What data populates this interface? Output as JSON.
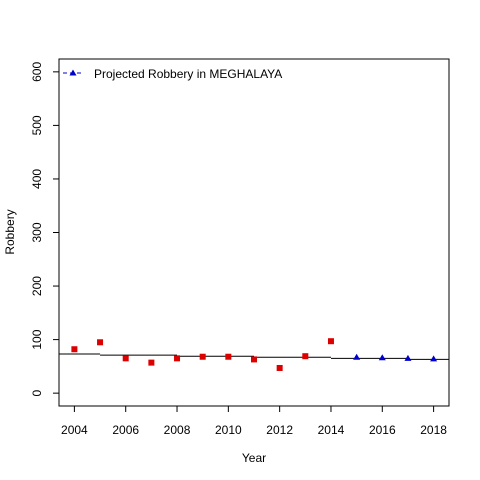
{
  "chart_data": {
    "type": "scatter",
    "xlabel": "Year",
    "ylabel": "Robbery",
    "xlim": [
      2003.4,
      2018.6
    ],
    "ylim": [
      -24,
      624
    ],
    "xticks": [
      "2004",
      "2006",
      "2008",
      "2010",
      "2012",
      "2014",
      "2016",
      "2018"
    ],
    "yticks": [
      "0",
      "100",
      "200",
      "300",
      "400",
      "500",
      "600"
    ],
    "legend_position": "top-left",
    "series": [
      {
        "marker": "square",
        "color": "#dd0000",
        "points": [
          {
            "x": 2004,
            "y": 82
          },
          {
            "x": 2005,
            "y": 95
          },
          {
            "x": 2006,
            "y": 65
          },
          {
            "x": 2007,
            "y": 57
          },
          {
            "x": 2008,
            "y": 65
          },
          {
            "x": 2009,
            "y": 68
          },
          {
            "x": 2010,
            "y": 68
          },
          {
            "x": 2011,
            "y": 63
          },
          {
            "x": 2012,
            "y": 47
          },
          {
            "x": 2013,
            "y": 69
          },
          {
            "x": 2014,
            "y": 97
          }
        ]
      },
      {
        "name": "Projected Robbery in MEGHALAYA",
        "marker": "triangle",
        "color": "#0000cc",
        "points": [
          {
            "x": 2015,
            "y": 67
          },
          {
            "x": 2016,
            "y": 66
          },
          {
            "x": 2017,
            "y": 65
          },
          {
            "x": 2018,
            "y": 64
          }
        ]
      }
    ],
    "trend_segments": [
      {
        "x0": 2003.4,
        "x1": 2005,
        "y": 73
      },
      {
        "x0": 2005,
        "x1": 2008,
        "y": 71
      },
      {
        "x0": 2008,
        "x1": 2011,
        "y": 69
      },
      {
        "x0": 2011,
        "x1": 2014,
        "y": 67
      },
      {
        "x0": 2014,
        "x1": 2017,
        "y": 65
      },
      {
        "x0": 2017,
        "x1": 2018.6,
        "y": 63
      }
    ]
  }
}
